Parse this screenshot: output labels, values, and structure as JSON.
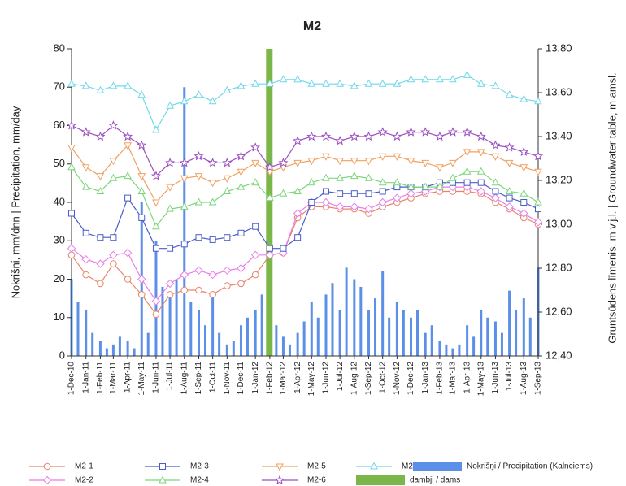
{
  "chart_data": {
    "type": "line",
    "title": "M2",
    "y_label": "Nokrišņi, mm/dnn | Precipitation, mm/day",
    "y2_label": "Gruntsūdens līmenis, m v.j.l. | Groundwater table, m amsl.",
    "xlim": [
      "2010-12-01",
      "2013-09-01"
    ],
    "xticks": [
      {
        "value": "2010-12-01",
        "label": "1-Dec-10"
      },
      {
        "value": "2011-01-01",
        "label": "1-Jan-11"
      },
      {
        "value": "2011-02-01",
        "label": "1-Feb-11"
      },
      {
        "value": "2011-03-01",
        "label": "1-Mar-11"
      },
      {
        "value": "2011-04-01",
        "label": "1-Apr-11"
      },
      {
        "value": "2011-05-01",
        "label": "1-May-11"
      },
      {
        "value": "2011-06-01",
        "label": "1-Jun-11"
      },
      {
        "value": "2011-07-01",
        "label": "1-Jul-11"
      },
      {
        "value": "2011-08-01",
        "label": "1-Aug-11"
      },
      {
        "value": "2011-09-01",
        "label": "1-Sep-11"
      },
      {
        "value": "2011-10-01",
        "label": "1-Oct-11"
      },
      {
        "value": "2011-11-01",
        "label": "1-Nov-11"
      },
      {
        "value": "2011-12-01",
        "label": "1-Dec-11"
      },
      {
        "value": "2012-01-01",
        "label": "1-Jan-12"
      },
      {
        "value": "2012-02-01",
        "label": "1-Feb-12"
      },
      {
        "value": "2012-03-01",
        "label": "1-Mar-12"
      },
      {
        "value": "2012-04-01",
        "label": "1-Apr-12"
      },
      {
        "value": "2012-05-01",
        "label": "1-May-12"
      },
      {
        "value": "2012-06-01",
        "label": "1-Jun-12"
      },
      {
        "value": "2012-07-01",
        "label": "1-Jul-12"
      },
      {
        "value": "2012-08-01",
        "label": "1-Aug-12"
      },
      {
        "value": "2012-09-01",
        "label": "1-Sep-12"
      },
      {
        "value": "2012-10-01",
        "label": "1-Oct-12"
      },
      {
        "value": "2012-11-01",
        "label": "1-Nov-12"
      },
      {
        "value": "2012-12-01",
        "label": "1-Dec-12"
      },
      {
        "value": "2013-01-01",
        "label": "1-Jan-13"
      },
      {
        "value": "2013-02-01",
        "label": "1-Feb-13"
      },
      {
        "value": "2013-03-01",
        "label": "1-Mar-13"
      },
      {
        "value": "2013-04-01",
        "label": "1-Apr-13"
      },
      {
        "value": "2013-05-01",
        "label": "1-May-13"
      },
      {
        "value": "2013-06-01",
        "label": "1-Jun-13"
      },
      {
        "value": "2013-07-01",
        "label": "1-Jul-13"
      },
      {
        "value": "2013-08-01",
        "label": "1-Aug-13"
      },
      {
        "value": "2013-09-01",
        "label": "1-Sep-13"
      }
    ],
    "ylim": [
      0,
      80
    ],
    "yticks": [
      0,
      10,
      20,
      30,
      40,
      50,
      60,
      70,
      80
    ],
    "y2lim": [
      12.4,
      13.8
    ],
    "y2ticks": [
      {
        "value": 12.4,
        "label": "12,40"
      },
      {
        "value": 12.6,
        "label": "12,60"
      },
      {
        "value": 12.8,
        "label": "12,80"
      },
      {
        "value": 13.0,
        "label": "13,00"
      },
      {
        "value": 13.2,
        "label": "13,20"
      },
      {
        "value": 13.4,
        "label": "13,40"
      },
      {
        "value": 13.6,
        "label": "13,60"
      },
      {
        "value": 13.8,
        "label": "13,80"
      }
    ],
    "grid": false,
    "legend": "bottom",
    "x": [
      "2010-12-01",
      "2011-01-01",
      "2011-02-01",
      "2011-03-01",
      "2011-04-01",
      "2011-05-01",
      "2011-06-01",
      "2011-07-01",
      "2011-08-01",
      "2011-09-01",
      "2011-10-01",
      "2011-11-01",
      "2011-12-01",
      "2012-01-01",
      "2012-02-01",
      "2012-03-01",
      "2012-04-01",
      "2012-05-01",
      "2012-06-01",
      "2012-07-01",
      "2012-08-01",
      "2012-09-01",
      "2012-10-01",
      "2012-11-01",
      "2012-12-01",
      "2013-01-01",
      "2013-02-01",
      "2013-03-01",
      "2013-04-01",
      "2013-05-01",
      "2013-06-01",
      "2013-07-01",
      "2013-08-01",
      "2013-09-01"
    ],
    "series": [
      {
        "name": "M2-1",
        "color": "#e8836b",
        "marker": "circle",
        "axis": "y2",
        "values": [
          12.86,
          12.77,
          12.73,
          12.82,
          12.75,
          12.68,
          12.59,
          12.68,
          12.7,
          12.7,
          12.68,
          12.72,
          12.73,
          12.77,
          12.86,
          12.87,
          13.03,
          13.08,
          13.08,
          13.07,
          13.07,
          13.05,
          13.08,
          13.1,
          13.12,
          13.14,
          13.15,
          13.15,
          13.15,
          13.14,
          13.1,
          13.07,
          13.03,
          13.0
        ]
      },
      {
        "name": "M2-2",
        "color": "#e87de8",
        "marker": "diamond",
        "axis": "y2",
        "values": [
          12.89,
          12.84,
          12.82,
          12.86,
          12.87,
          12.75,
          12.65,
          12.73,
          12.77,
          12.79,
          12.77,
          12.79,
          12.8,
          12.86,
          12.86,
          12.87,
          13.05,
          13.1,
          13.1,
          13.08,
          13.08,
          13.07,
          13.1,
          13.12,
          13.14,
          13.15,
          13.17,
          13.17,
          13.17,
          13.15,
          13.12,
          13.08,
          13.05,
          13.01
        ]
      },
      {
        "name": "M2-3",
        "color": "#4a5cc8",
        "marker": "square",
        "axis": "y2",
        "values": [
          13.05,
          12.96,
          12.94,
          12.94,
          13.12,
          13.03,
          12.89,
          12.89,
          12.91,
          12.94,
          12.93,
          12.94,
          12.96,
          12.99,
          12.89,
          12.89,
          12.94,
          13.1,
          13.15,
          13.14,
          13.14,
          13.14,
          13.15,
          13.17,
          13.17,
          13.17,
          13.19,
          13.19,
          13.19,
          13.19,
          13.15,
          13.12,
          13.1,
          13.07
        ]
      },
      {
        "name": "M2-4",
        "color": "#7bd67b",
        "marker": "triangle-up",
        "axis": "y2",
        "values": [
          13.26,
          13.17,
          13.15,
          13.21,
          13.22,
          13.15,
          12.99,
          13.07,
          13.08,
          13.1,
          13.1,
          13.15,
          13.17,
          13.19,
          13.12,
          13.14,
          13.15,
          13.19,
          13.21,
          13.21,
          13.22,
          13.21,
          13.19,
          13.19,
          13.17,
          13.17,
          13.17,
          13.21,
          13.24,
          13.24,
          13.19,
          13.15,
          13.14,
          13.1
        ]
      },
      {
        "name": "M2-5",
        "color": "#f0a060",
        "marker": "triangle-down",
        "axis": "y2",
        "values": [
          13.35,
          13.26,
          13.22,
          13.29,
          13.36,
          13.22,
          13.1,
          13.17,
          13.21,
          13.22,
          13.19,
          13.21,
          13.24,
          13.28,
          13.24,
          13.26,
          13.28,
          13.29,
          13.31,
          13.29,
          13.29,
          13.29,
          13.31,
          13.31,
          13.29,
          13.28,
          13.26,
          13.28,
          13.33,
          13.33,
          13.31,
          13.28,
          13.26,
          13.24
        ]
      },
      {
        "name": "M2-6",
        "color": "#9b4fc0",
        "marker": "star",
        "axis": "y2",
        "values": [
          13.45,
          13.42,
          13.4,
          13.45,
          13.4,
          13.36,
          13.22,
          13.28,
          13.28,
          13.31,
          13.28,
          13.28,
          13.31,
          13.35,
          13.26,
          13.28,
          13.38,
          13.4,
          13.4,
          13.38,
          13.4,
          13.4,
          13.42,
          13.4,
          13.42,
          13.42,
          13.4,
          13.42,
          13.42,
          13.4,
          13.36,
          13.35,
          13.33,
          13.31
        ]
      },
      {
        "name": "M2-7",
        "color": "#6fd8e8",
        "marker": "triangle-up",
        "axis": "y2",
        "values": [
          13.64,
          13.63,
          13.61,
          13.63,
          13.63,
          13.59,
          13.43,
          13.54,
          13.56,
          13.59,
          13.56,
          13.61,
          13.63,
          13.64,
          13.64,
          13.66,
          13.66,
          13.64,
          13.64,
          13.64,
          13.63,
          13.64,
          13.64,
          13.64,
          13.66,
          13.66,
          13.66,
          13.66,
          13.68,
          13.64,
          13.63,
          13.59,
          13.57,
          13.56
        ]
      }
    ],
    "dams": {
      "name": "dambji / dams",
      "color": "#7ab648",
      "x": [
        "2012-01-24",
        "2012-02-07"
      ]
    },
    "precipitation": {
      "name": "Nokrišņi / Precipitation (Kalnciems)",
      "color": "#5b8fe8",
      "x": [
        "2010-12-01",
        "2010-12-15",
        "2011-01-01",
        "2011-01-15",
        "2011-02-01",
        "2011-02-15",
        "2011-03-01",
        "2011-03-15",
        "2011-04-01",
        "2011-04-15",
        "2011-05-01",
        "2011-05-15",
        "2011-06-01",
        "2011-06-15",
        "2011-07-01",
        "2011-07-15",
        "2011-08-01",
        "2011-08-15",
        "2011-09-01",
        "2011-09-15",
        "2011-10-01",
        "2011-10-15",
        "2011-11-01",
        "2011-11-15",
        "2011-12-01",
        "2011-12-15",
        "2012-01-01",
        "2012-01-15",
        "2012-02-01",
        "2012-02-15",
        "2012-03-01",
        "2012-03-15",
        "2012-04-01",
        "2012-04-15",
        "2012-05-01",
        "2012-05-15",
        "2012-06-01",
        "2012-06-15",
        "2012-07-01",
        "2012-07-15",
        "2012-08-01",
        "2012-08-15",
        "2012-09-01",
        "2012-09-15",
        "2012-10-01",
        "2012-10-15",
        "2012-11-01",
        "2012-11-15",
        "2012-12-01",
        "2012-12-15",
        "2013-01-01",
        "2013-01-15",
        "2013-02-01",
        "2013-02-15",
        "2013-03-01",
        "2013-03-15",
        "2013-04-01",
        "2013-04-15",
        "2013-05-01",
        "2013-05-15",
        "2013-06-01",
        "2013-06-15",
        "2013-07-01",
        "2013-07-15",
        "2013-08-01",
        "2013-08-15",
        "2013-09-01"
      ],
      "values": [
        20,
        14,
        12,
        6,
        4,
        2,
        3,
        5,
        4,
        2,
        40,
        6,
        30,
        18,
        16,
        20,
        70,
        14,
        12,
        8,
        16,
        6,
        3,
        4,
        8,
        10,
        12,
        16,
        20,
        8,
        5,
        3,
        6,
        9,
        14,
        10,
        16,
        19,
        12,
        23,
        20,
        18,
        12,
        15,
        22,
        10,
        14,
        12,
        10,
        12,
        6,
        8,
        4,
        3,
        2,
        3,
        8,
        5,
        12,
        10,
        9,
        6,
        17,
        12,
        15,
        10,
        23
      ]
    }
  }
}
